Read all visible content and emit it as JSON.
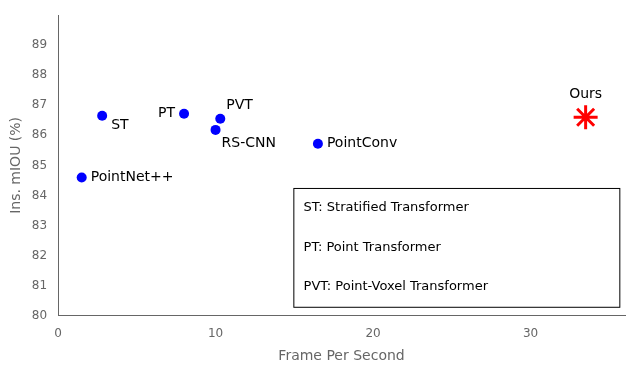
{
  "chart_data": {
    "type": "scatter",
    "xlabel": "Frame Per Second",
    "ylabel": "Ins. mIOU (%)",
    "points": [
      {
        "label": "PointNet++",
        "x": 1.5,
        "y": 84.6,
        "color": "blue",
        "marker": "o"
      },
      {
        "label": "ST",
        "x": 2.8,
        "y": 86.65,
        "color": "blue",
        "marker": "o"
      },
      {
        "label": "PT",
        "x": 8.0,
        "y": 86.72,
        "color": "blue",
        "marker": "o"
      },
      {
        "label": "PVT",
        "x": 10.3,
        "y": 86.55,
        "color": "blue",
        "marker": "o"
      },
      {
        "label": "RS-CNN",
        "x": 10.0,
        "y": 86.18,
        "color": "blue",
        "marker": "o"
      },
      {
        "label": "PointConv",
        "x": 16.5,
        "y": 85.72,
        "color": "blue",
        "marker": "o"
      },
      {
        "label": "Ours",
        "x": 33.5,
        "y": 86.6,
        "color": "red",
        "marker": "*"
      }
    ],
    "xlim": [
      0,
      36
    ],
    "ylim": [
      80,
      90
    ],
    "xticks": [
      0,
      10,
      20,
      30
    ],
    "yticks": [
      80,
      81,
      82,
      83,
      84,
      85,
      86,
      87,
      88,
      89
    ],
    "annotations": [
      "ST: Stratified Transformer",
      "PT: Point Transformer",
      "PVT: Point-Voxel Transformer"
    ],
    "grid": false
  }
}
